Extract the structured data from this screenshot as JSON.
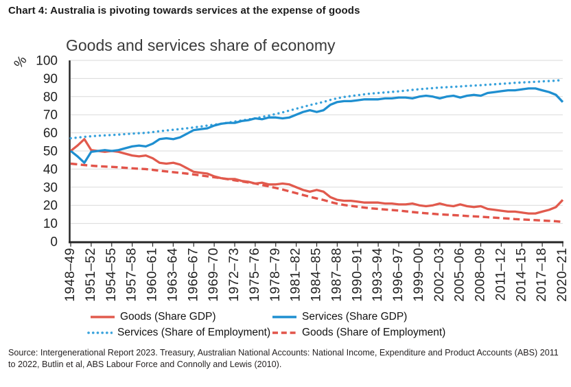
{
  "header": {
    "title": "Chart 4: Australia is pivoting towards services at the expense of goods"
  },
  "chart": {
    "title": "Goods and services share of economy",
    "y_axis_unit": "%"
  },
  "colors": {
    "grid": "#d9d9d9",
    "axis": "#262626",
    "tick_text": "#212121",
    "goods_red": "#e15a4d",
    "services_blue": "#1f8fd0",
    "services_emp_blue": "#38a2dc",
    "goods_emp_red": "#e2544a"
  },
  "legend": {
    "rows": [
      [
        {
          "series_index": 0
        },
        {
          "series_index": 1
        }
      ],
      [
        {
          "series_index": 2
        },
        {
          "series_index": 3
        }
      ]
    ]
  },
  "source": "Source: Intergenerational Report 2023. Treasury, Australian National Accounts: National Income, Expenditure and Product Accounts (ABS) 2011 to 2022, Butlin et al, ABS Labour Force and Connolly and Lewis (2010).",
  "chart_data": {
    "type": "line",
    "title": "Goods and services share of economy",
    "xlabel": "",
    "ylabel": "%",
    "ylim": [
      0,
      100
    ],
    "yticks": [
      0,
      10,
      20,
      30,
      40,
      50,
      60,
      70,
      80,
      90,
      100
    ],
    "grid": "horizontal",
    "legend_position": "bottom",
    "x_note": "Annual financial years, 73 points from 1948–49 to 2020–21; tick labels every 3 years",
    "x_tick_labels": [
      "1948–49",
      "1951–52",
      "1954–55",
      "1957–58",
      "1960–61",
      "1963–64",
      "1966–67",
      "1969–70",
      "1972–73",
      "1975–76",
      "1978–79",
      "1981–82",
      "1984–85",
      "1987–88",
      "1990–91",
      "1993–94",
      "1996–97",
      "1999–00",
      "2002–03",
      "2005–06",
      "2008–09",
      "2011–12",
      "2014–15",
      "2017–18",
      "2020–21"
    ],
    "x_tick_every": 3,
    "series": [
      {
        "name": "Goods (Share GDP)",
        "style": "solid",
        "color": "#e15a4d",
        "values": [
          50,
          53,
          56.5,
          50.5,
          50,
          49.5,
          50,
          49.5,
          48.5,
          47.5,
          47,
          47.5,
          46,
          43.5,
          43,
          43.5,
          42.5,
          40.5,
          38.5,
          38,
          37.5,
          36,
          35,
          34.5,
          34.5,
          33.5,
          33,
          32,
          32.5,
          31.5,
          31.5,
          32,
          31.5,
          30,
          28.5,
          27.5,
          28.5,
          27.5,
          24.5,
          23,
          22.5,
          22.5,
          22,
          21.5,
          21.5,
          21.5,
          21,
          21,
          20.5,
          20.5,
          21,
          20,
          19.5,
          20,
          21,
          20,
          19.5,
          20.5,
          19.5,
          19,
          19.5,
          18,
          17.5,
          17,
          16.5,
          16.5,
          16,
          15.5,
          15.5,
          16.5,
          17.5,
          19,
          23
        ]
      },
      {
        "name": "Services (Share GDP)",
        "style": "solid",
        "color": "#1f8fd0",
        "values": [
          50,
          47,
          43.5,
          49.5,
          50,
          50.5,
          50,
          50.5,
          51.5,
          52.5,
          53,
          52.5,
          54,
          56.5,
          57,
          56.5,
          57.5,
          59.5,
          61.5,
          62,
          62.5,
          64,
          65,
          65.5,
          65.5,
          66.5,
          67,
          68,
          67.5,
          68.5,
          68.5,
          68,
          68.5,
          70,
          71.5,
          72.5,
          71.5,
          72.5,
          75.5,
          77,
          77.5,
          77.5,
          78,
          78.5,
          78.5,
          78.5,
          79,
          79,
          79.5,
          79.5,
          79,
          80,
          80.5,
          80,
          79,
          80,
          80.5,
          79.5,
          80.5,
          81,
          80.5,
          82,
          82.5,
          83,
          83.5,
          83.5,
          84,
          84.5,
          84.5,
          83.5,
          82.5,
          81,
          77
        ]
      },
      {
        "name": "Services (Share of Employment)",
        "style": "dotted",
        "color": "#38a2dc",
        "values": [
          57,
          57.4,
          57.8,
          58.1,
          58.4,
          58.6,
          58.8,
          59,
          59.3,
          59.6,
          59.8,
          60,
          60.4,
          60.9,
          61.3,
          61.7,
          62.1,
          62.5,
          63,
          63.5,
          64,
          64.5,
          65,
          65.6,
          66.2,
          66.8,
          67.4,
          68,
          68.8,
          69.6,
          70.4,
          71.3,
          72.3,
          73.3,
          74.3,
          75.3,
          76.2,
          77.1,
          78.2,
          79.1,
          79.8,
          80.3,
          80.8,
          81.3,
          81.7,
          82,
          82.3,
          82.6,
          82.9,
          83.3,
          83.7,
          84.1,
          84.4,
          84.7,
          85,
          85.2,
          85.4,
          85.6,
          85.9,
          86.1,
          86.3,
          86.6,
          86.8,
          87.1,
          87.3,
          87.6,
          87.8,
          88,
          88.2,
          88.4,
          88.6,
          88.8,
          89.2
        ]
      },
      {
        "name": "Goods (Share of Employment)",
        "style": "dashed",
        "color": "#e2544a",
        "values": [
          43,
          42.6,
          42.2,
          41.9,
          41.6,
          41.4,
          41.2,
          41,
          40.7,
          40.4,
          40.2,
          40,
          39.6,
          39.1,
          38.7,
          38.3,
          37.9,
          37.5,
          37,
          36.5,
          36,
          35.5,
          35,
          34.4,
          33.8,
          33.2,
          32.6,
          32,
          31.2,
          30.4,
          29.6,
          28.7,
          27.7,
          26.7,
          25.7,
          24.7,
          23.8,
          22.9,
          21.8,
          20.9,
          20.2,
          19.7,
          19.2,
          18.7,
          18.3,
          18,
          17.7,
          17.4,
          17.1,
          16.7,
          16.3,
          15.9,
          15.6,
          15.3,
          15,
          14.8,
          14.6,
          14.4,
          14.1,
          13.9,
          13.7,
          13.4,
          13.2,
          12.9,
          12.7,
          12.4,
          12.2,
          12,
          11.8,
          11.6,
          11.4,
          11.2,
          10.8
        ]
      }
    ]
  }
}
